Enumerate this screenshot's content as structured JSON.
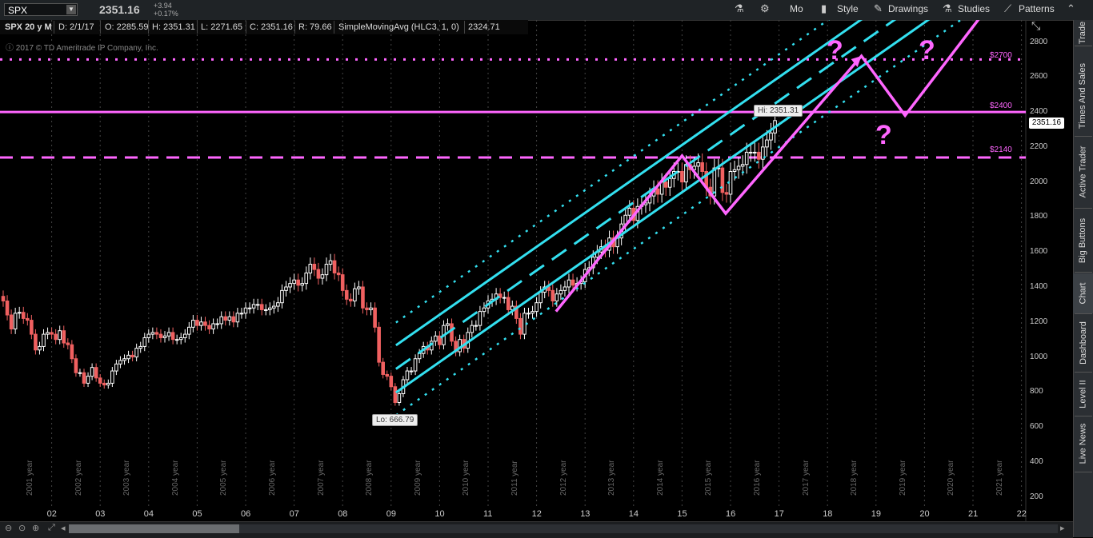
{
  "toolbar": {
    "symbol": "SPX",
    "last": "2351.16",
    "change": "+3.94",
    "change_pct": "+0.17%",
    "mo": "Mo",
    "style": "Style",
    "drawings": "Drawings",
    "studies": "Studies",
    "patterns": "Patterns"
  },
  "info": {
    "title": "SPX 20 y M",
    "date": "D: 2/1/17",
    "open": "O: 2285.59",
    "high": "H: 2351.31",
    "low": "L: 2271.65",
    "close": "C: 2351.16",
    "range": "R: 79.66",
    "study": "SimpleMovingAvg (HLC3, 1, 0)",
    "study_val": "2324.71",
    "copyright": "2017 © TD Ameritrade IP Company, Inc."
  },
  "side_tabs": [
    "Trade",
    "Times And Sales",
    "Active Trader",
    "Big Buttons",
    "Chart",
    "Dashboard",
    "Level II",
    "Live News"
  ],
  "annotations": {
    "hi": "Hi: 2351.31",
    "lo": "Lo: 666.79",
    "price_badge": "2351.16",
    "level_2700": "$2700",
    "level_2400": "$2400",
    "level_2140": "$2140",
    "question": "?"
  },
  "colors": {
    "up": "#ffffff",
    "down": "#f06060",
    "channel": "#33e0f0",
    "magenta": "#ff66ff",
    "background": "#000000"
  },
  "chart_data": {
    "type": "candlestick",
    "title": "SPX 20 y M",
    "interval": "monthly",
    "ylim": [
      130,
      2880
    ],
    "yticks": [
      200,
      400,
      600,
      800,
      1000,
      1200,
      1400,
      1600,
      1800,
      2000,
      2200,
      2400,
      2600,
      2800
    ],
    "xticks": [
      "02",
      "03",
      "04",
      "05",
      "06",
      "07",
      "08",
      "09",
      "10",
      "11",
      "12",
      "13",
      "14",
      "15",
      "16",
      "17",
      "18",
      "19",
      "20",
      "21",
      "22"
    ],
    "year_labels": [
      "2001 year",
      "2002 year",
      "2003 year",
      "2004 year",
      "2005 year",
      "2006 year",
      "2007 year",
      "2008 year",
      "2009 year",
      "2010 year",
      "2011 year",
      "2012 year",
      "2013 year",
      "2014 year",
      "2015 year",
      "2016 year",
      "2017 year",
      "2018 year",
      "2019 year",
      "2020 year",
      "2021 year"
    ],
    "start_year": 2001.0,
    "series": [
      {
        "name": "SPX",
        "close": [
          1320,
          1240,
          1160,
          1250,
          1255,
          1220,
          1210,
          1130,
          1040,
          1060,
          1130,
          1140,
          1130,
          1100,
          1150,
          1080,
          1070,
          990,
          910,
          910,
          850,
          890,
          940,
          880,
          850,
          840,
          850,
          920,
          960,
          980,
          990,
          1010,
          1000,
          1050,
          1060,
          1110,
          1130,
          1140,
          1130,
          1110,
          1120,
          1140,
          1100,
          1100,
          1110,
          1130,
          1170,
          1210,
          1180,
          1200,
          1180,
          1160,
          1190,
          1190,
          1230,
          1210,
          1230,
          1200,
          1250,
          1250,
          1280,
          1280,
          1300,
          1300,
          1270,
          1270,
          1280,
          1290,
          1310,
          1380,
          1400,
          1420,
          1440,
          1410,
          1420,
          1480,
          1530,
          1500,
          1450,
          1470,
          1530,
          1550,
          1480,
          1470,
          1380,
          1330,
          1320,
          1390,
          1400,
          1280,
          1270,
          1280,
          1170,
          970,
          900,
          890,
          830,
          740,
          790,
          870,
          920,
          920,
          990,
          1020,
          1060,
          1040,
          1090,
          1120,
          1070,
          1180,
          1190,
          1090,
          1030,
          1100,
          1050,
          1140,
          1180,
          1180,
          1260,
          1280,
          1320,
          1330,
          1360,
          1340,
          1340,
          1270,
          1290,
          1220,
          1130,
          1250,
          1250,
          1260,
          1310,
          1370,
          1400,
          1380,
          1320,
          1360,
          1380,
          1400,
          1440,
          1410,
          1420,
          1430,
          1500,
          1510,
          1570,
          1600,
          1630,
          1610,
          1680,
          1630,
          1680,
          1760,
          1810,
          1850,
          1780,
          1860,
          1870,
          1880,
          1920,
          1960,
          1930,
          2000,
          1970,
          2020,
          2060,
          2060,
          2000,
          2100,
          2070,
          2090,
          2110,
          2060,
          1970,
          1920,
          2080,
          2080,
          1940,
          1930,
          2060,
          2070,
          2090,
          2100,
          2170,
          2170,
          2170,
          2130,
          2200,
          2240,
          2280,
          2351
        ]
      }
    ],
    "channels": {
      "base_x": 2009.1,
      "base_y": 666.79,
      "slope_per_year": 194,
      "solid_offsets": [
        130,
        400
      ],
      "dashed_offsets": [
        265
      ],
      "dotted_offsets": [
        0,
        530
      ]
    },
    "horizontal_levels": [
      {
        "label": "$2700",
        "value": 2700,
        "style": "dotted"
      },
      {
        "label": "$2400",
        "value": 2400,
        "style": "solid"
      },
      {
        "label": "$2140",
        "value": 2140,
        "style": "dashed"
      }
    ],
    "projection_path": [
      [
        2012.4,
        1260
      ],
      [
        2015.0,
        2150
      ],
      [
        2015.9,
        1820
      ],
      [
        2018.7,
        2720
      ],
      [
        2019.6,
        2380
      ],
      [
        2021.2,
        2960
      ]
    ],
    "annotations": [
      {
        "text": "Hi: 2351.31",
        "x": 2016.9,
        "y": 2351.31
      },
      {
        "text": "Lo: 666.79",
        "x": 2009.1,
        "y": 666.79
      }
    ]
  }
}
